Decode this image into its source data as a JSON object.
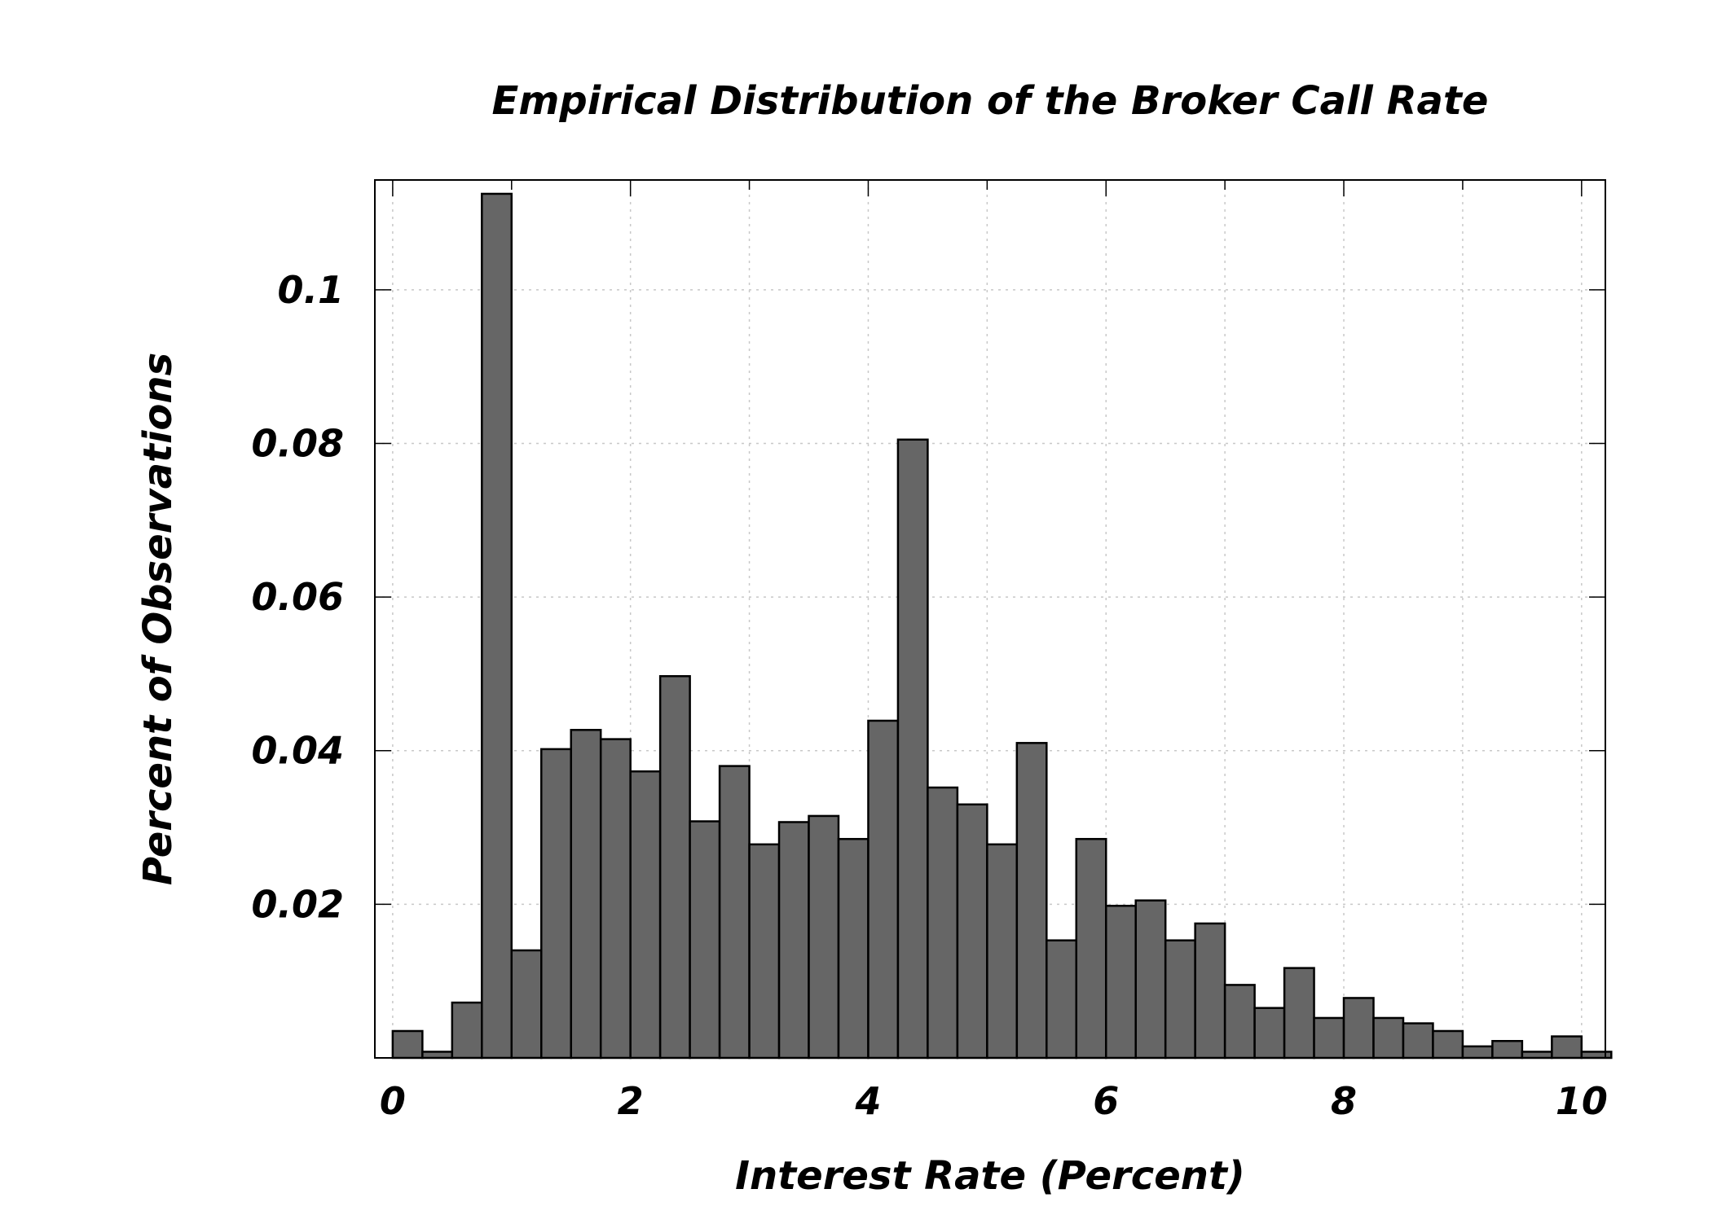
{
  "chart_data": {
    "type": "bar",
    "title": "Empirical Distribution of the Broker Call Rate",
    "xlabel": "Interest Rate (Percent)",
    "ylabel": "Percent of Observations",
    "xlim": [
      -0.15,
      10.2
    ],
    "ylim": [
      0,
      0.1143
    ],
    "x_ticks": [
      0,
      2,
      4,
      6,
      8,
      10
    ],
    "x_tick_labels": [
      "0",
      "2",
      "4",
      "6",
      "8",
      "10"
    ],
    "y_ticks": [
      0.02,
      0.04,
      0.06,
      0.08,
      0.1
    ],
    "y_tick_labels": [
      "0.02",
      "0.04",
      "0.06",
      "0.08",
      "0.1"
    ],
    "grid": true,
    "bar_color": "#666666",
    "bin_width": 0.25,
    "bin_start": 0,
    "values": [
      0.0035,
      0.0008,
      0.0072,
      0.1125,
      0.014,
      0.0402,
      0.0427,
      0.0415,
      0.0373,
      0.0497,
      0.0308,
      0.038,
      0.0278,
      0.0307,
      0.0315,
      0.0285,
      0.0439,
      0.0805,
      0.0352,
      0.033,
      0.0278,
      0.041,
      0.0153,
      0.0285,
      0.0198,
      0.0205,
      0.0153,
      0.0175,
      0.0095,
      0.0065,
      0.0117,
      0.0052,
      0.0078,
      0.0052,
      0.0045,
      0.0035,
      0.0015,
      0.0022,
      0.0008,
      0.0028,
      0.0008
    ]
  }
}
